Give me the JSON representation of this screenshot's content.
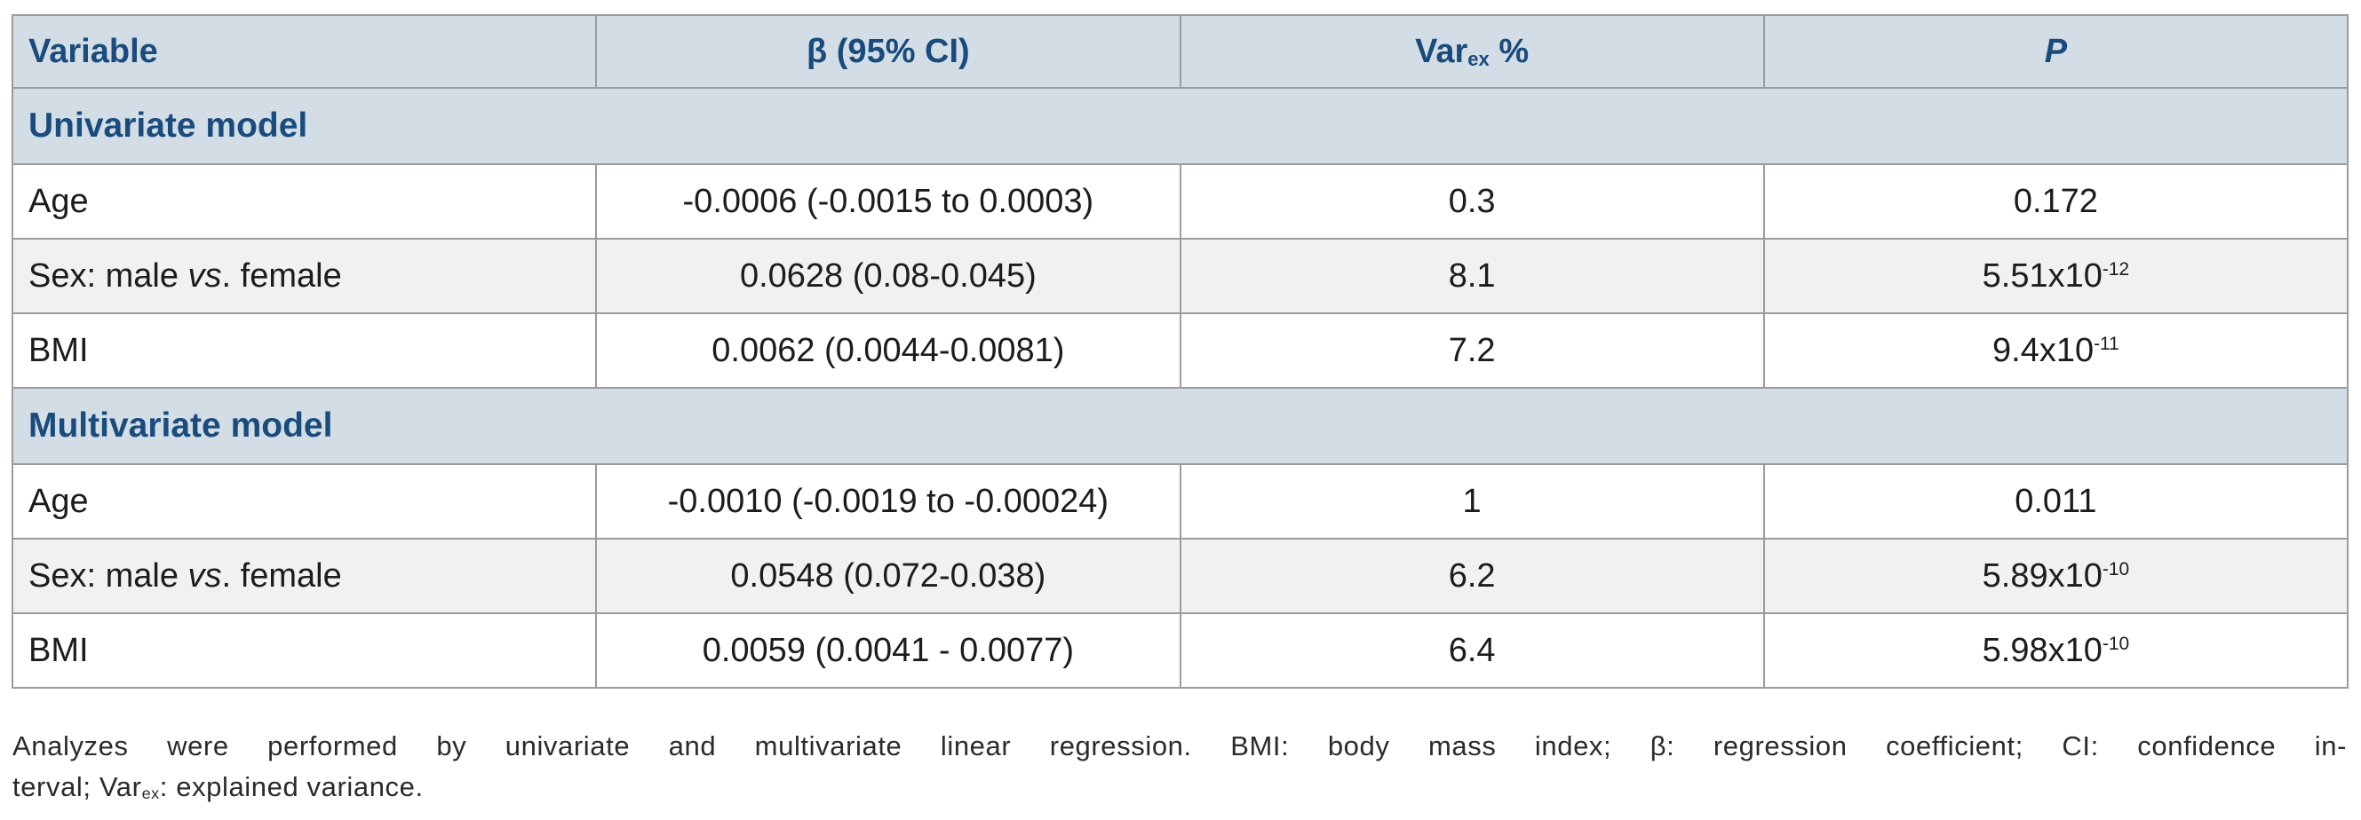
{
  "colors": {
    "header_bg": "#d3dde6",
    "header_text": "#1a4b7d",
    "row_alt_bg": "#f1f1f1",
    "border": "#9b9b9b",
    "body_text": "#1c1c1c"
  },
  "table": {
    "headers": {
      "variable": "Variable",
      "beta": "β (95% CI)",
      "varex_base": "Var",
      "varex_sub": "ex",
      "varex_unit": " %",
      "p": "P"
    },
    "sections": [
      {
        "title": "Univariate model",
        "rows": [
          {
            "var_pre": "Age",
            "var_italic": "",
            "var_post": "",
            "beta": "-0.0006 (-0.0015 to 0.0003)",
            "varex": "0.3",
            "p_base": "0.172",
            "p_sup": ""
          },
          {
            "var_pre": "Sex: male ",
            "var_italic": "vs",
            "var_post": ". female",
            "beta": "0.0628 (0.08-0.045)",
            "varex": "8.1",
            "p_base": "5.51x10",
            "p_sup": "-12"
          },
          {
            "var_pre": "BMI",
            "var_italic": "",
            "var_post": "",
            "beta": "0.0062 (0.0044-0.0081)",
            "varex": "7.2",
            "p_base": "9.4x10",
            "p_sup": "-11"
          }
        ]
      },
      {
        "title": "Multivariate model",
        "rows": [
          {
            "var_pre": "Age",
            "var_italic": "",
            "var_post": "",
            "beta": "-0.0010 (-0.0019 to -0.00024)",
            "varex": "1",
            "p_base": "0.011",
            "p_sup": ""
          },
          {
            "var_pre": "Sex: male ",
            "var_italic": "vs",
            "var_post": ". female",
            "beta": "0.0548 (0.072-0.038)",
            "varex": "6.2",
            "p_base": "5.89x10",
            "p_sup": "-10"
          },
          {
            "var_pre": "BMI",
            "var_italic": "",
            "var_post": "",
            "beta": "0.0059 (0.0041 - 0.0077)",
            "varex": "6.4",
            "p_base": "5.98x10",
            "p_sup": "-10"
          }
        ]
      }
    ]
  },
  "footnote": {
    "line1": "Analyzes were performed by univariate and multivariate linear regression. BMI: body mass index; β: regression coefficient; CI: confidence in-",
    "line2_pre": "terval; Var",
    "line2_sub": "ex",
    "line2_post": ": explained variance."
  }
}
